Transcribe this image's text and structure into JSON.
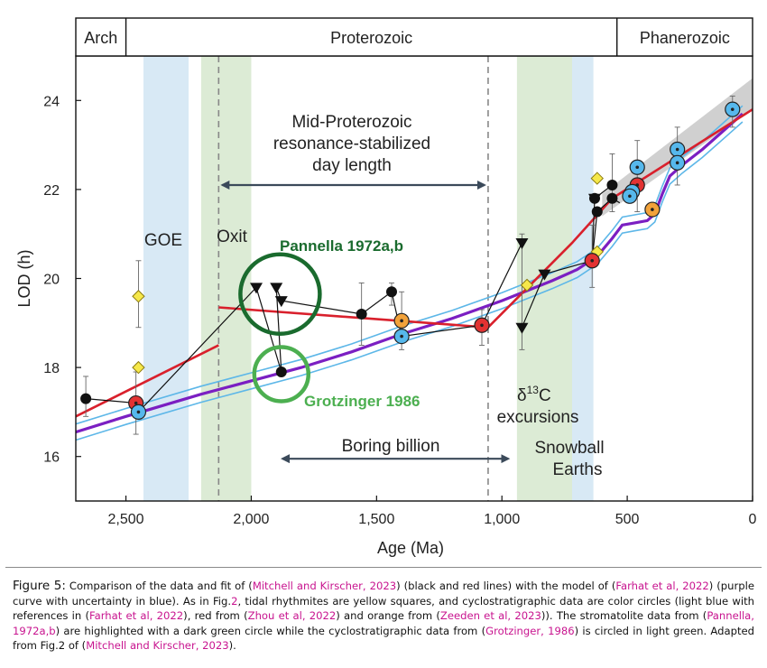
{
  "chart_data": {
    "type": "scatter",
    "xlabel": "Age (Ma)",
    "ylabel": "LOD (h)",
    "xlim": [
      2700,
      0
    ],
    "ylim": [
      15,
      25
    ],
    "xticks": [
      2500,
      2000,
      1500,
      1000,
      500,
      0
    ],
    "xtick_labels": [
      "2,500",
      "2,000",
      "1,500",
      "1,000",
      "500",
      "0"
    ],
    "yticks": [
      16,
      18,
      20,
      22,
      24
    ],
    "yticks_labels": [
      "16",
      "18",
      "20",
      "22",
      "24"
    ],
    "eras": [
      {
        "label": "Arch",
        "start": 2700,
        "end": 2500
      },
      {
        "label": "Proterozoic",
        "start": 2500,
        "end": 541
      },
      {
        "label": "Phanerozoic",
        "start": 541,
        "end": 0
      }
    ],
    "bands": [
      {
        "label": "GOE",
        "start": 2430,
        "end": 2250,
        "color": "#d8e9f5"
      },
      {
        "label": "Oxit",
        "start": 2200,
        "end": 2000,
        "color": "#dcebd5"
      },
      {
        "label": "δ13C excursions",
        "start": 940,
        "end": 720,
        "color": "#dcebd5"
      },
      {
        "label": "Snowball Earths",
        "start": 720,
        "end": 635,
        "color": "#d8e9f5"
      }
    ],
    "dashed_lines": [
      2130,
      1055
    ],
    "annotations": {
      "goe": "GOE",
      "oxit": "Oxit",
      "mid_proterozoic": [
        "Mid-Proterozoic",
        "resonance-stabilized",
        "day length"
      ],
      "boring_billion": "Boring billion",
      "delta_c_prefix": "δ",
      "delta_c_sup": "13",
      "delta_c_suffix": "C",
      "excursions": "excursions",
      "snowball_1": "Snowball",
      "snowball_2": "Earths",
      "pannella": "Pannella 1972a,b",
      "grotzinger": "Grotzinger 1986"
    },
    "arrows": [
      {
        "name": "mid-proterozoic-arrow",
        "x": [
          2130,
          1055
        ],
        "y": 22.1
      },
      {
        "name": "boring-billion-arrow",
        "x": [
          1890,
          960
        ],
        "y": 15.95
      }
    ],
    "circles": [
      {
        "name": "pannella-circle",
        "x": 1885,
        "y": 19.65,
        "color": "#1a6b2e"
      },
      {
        "name": "grotzinger-circle",
        "x": 1880,
        "y": 17.85,
        "color": "#4caf50"
      }
    ],
    "series": [
      {
        "name": "Mitchell and Kirscher 2023 (data)",
        "kind": "black-points",
        "points": [
          [
            2660,
            17.3
          ],
          [
            2460,
            17.2
          ],
          [
            1880,
            17.9
          ],
          [
            1560,
            19.2
          ],
          [
            1440,
            19.7
          ],
          [
            630,
            21.8
          ],
          [
            620,
            21.5
          ],
          [
            560,
            22.1
          ],
          [
            560,
            21.8
          ]
        ]
      },
      {
        "name": "stromatolite",
        "kind": "triangles",
        "points": [
          [
            1980,
            19.8
          ],
          [
            1900,
            19.8
          ],
          [
            1880,
            19.5
          ],
          [
            920,
            20.8
          ],
          [
            920,
            18.9
          ],
          [
            830,
            20.1
          ],
          [
            630,
            21.8
          ]
        ]
      },
      {
        "name": "tidal rhythmites",
        "kind": "yellow-squares",
        "points": [
          [
            2450,
            19.6
          ],
          [
            2450,
            18.0
          ],
          [
            900,
            19.85
          ],
          [
            620,
            22.25
          ],
          [
            620,
            20.6
          ],
          [
            300,
            22.85
          ]
        ]
      },
      {
        "name": "cyclostratigraphy (Farhat et al)",
        "kind": "lightblue-circles",
        "points": [
          [
            2450,
            17.0
          ],
          [
            1400,
            18.7
          ],
          [
            460,
            22.5
          ],
          [
            480,
            21.95
          ],
          [
            490,
            21.85
          ],
          [
            300,
            22.9
          ],
          [
            300,
            22.6
          ],
          [
            80,
            23.8
          ]
        ]
      },
      {
        "name": "cyclostratigraphy (Zhou et al)",
        "kind": "red-circles",
        "points": [
          [
            2460,
            17.2
          ],
          [
            1080,
            18.95
          ],
          [
            640,
            20.4
          ],
          [
            460,
            22.1
          ]
        ]
      },
      {
        "name": "cyclostratigraphy (Zeeden et al)",
        "kind": "orange-circles",
        "points": [
          [
            1400,
            19.05
          ],
          [
            400,
            21.55
          ]
        ]
      },
      {
        "name": "uncertainty",
        "kind": "error-bars",
        "bars": [
          [
            2660,
            16.9,
            17.8
          ],
          [
            2460,
            16.5,
            17.9
          ],
          [
            2450,
            18.9,
            20.4
          ],
          [
            1560,
            18.5,
            19.9
          ],
          [
            1440,
            19.4,
            19.9
          ],
          [
            1400,
            18.4,
            19.7
          ],
          [
            1080,
            18.5,
            19.3
          ],
          [
            920,
            18.4,
            21.0
          ],
          [
            640,
            19.8,
            21.2
          ],
          [
            560,
            21.5,
            22.8
          ],
          [
            460,
            21.5,
            23.1
          ],
          [
            300,
            22.1,
            23.4
          ],
          [
            80,
            23.4,
            24.1
          ]
        ]
      },
      {
        "name": "Mitchell connecting lines",
        "kind": "black-lines",
        "segments": [
          [
            [
              2660,
              17.3
            ],
            [
              2460,
              17.2
            ],
            [
              2450,
              17.0
            ],
            [
              1980,
              19.8
            ],
            [
              1880,
              17.9
            ],
            [
              1900,
              19.8
            ],
            [
              1880,
              19.5
            ],
            [
              1560,
              19.2
            ],
            [
              1440,
              19.7
            ],
            [
              1400,
              18.7
            ],
            [
              1080,
              18.95
            ],
            [
              920,
              20.8
            ]
          ],
          [
            [
              920,
              18.9
            ],
            [
              830,
              20.1
            ],
            [
              640,
              20.4
            ],
            [
              630,
              21.8
            ],
            [
              560,
              22.1
            ]
          ],
          [
            [
              640,
              20.4
            ],
            [
              620,
              21.5
            ],
            [
              560,
              21.8
            ],
            [
              530,
              21.7
            ]
          ]
        ]
      },
      {
        "name": "Mitchell and Kirscher 2023 (fit)",
        "kind": "red-line",
        "segments": [
          [
            [
              2700,
              16.9
            ],
            [
              2130,
              18.5
            ]
          ],
          [
            [
              2130,
              19.35
            ],
            [
              1055,
              18.9
            ]
          ],
          [
            [
              1055,
              18.9
            ],
            [
              720,
              20.8
            ],
            [
              560,
              21.8
            ],
            [
              0,
              23.8
            ]
          ]
        ]
      },
      {
        "name": "Farhat et al 2022 model",
        "kind": "purple-line",
        "points": [
          [
            2700,
            16.55
          ],
          [
            2500,
            16.9
          ],
          [
            2200,
            17.4
          ],
          [
            2000,
            17.7
          ],
          [
            1800,
            18.0
          ],
          [
            1600,
            18.35
          ],
          [
            1400,
            18.75
          ],
          [
            1200,
            19.1
          ],
          [
            1000,
            19.5
          ],
          [
            800,
            19.95
          ],
          [
            700,
            20.2
          ],
          [
            620,
            20.5
          ],
          [
            560,
            20.9
          ],
          [
            520,
            21.2
          ],
          [
            470,
            21.25
          ],
          [
            420,
            21.3
          ],
          [
            390,
            21.45
          ],
          [
            360,
            21.9
          ],
          [
            330,
            22.3
          ],
          [
            280,
            22.55
          ],
          [
            200,
            22.9
          ],
          [
            100,
            23.4
          ],
          [
            40,
            23.7
          ]
        ]
      },
      {
        "name": "uncertainty envelope",
        "kind": "blue-envelope",
        "offset": 0.18
      },
      {
        "name": "Phanerozoic band",
        "kind": "gray-band",
        "x": [
          600,
          0
        ],
        "upper": [
          21.9,
          24.5
        ],
        "lower": [
          21.4,
          23.8
        ]
      }
    ]
  },
  "caption": {
    "label": "Figure 5:",
    "t1": " Comparison of the data and fit of (",
    "r1": "Mitchell and Kirscher, 2023",
    "t2": ") (black and red lines) with the model of (",
    "r2": "Farhat et al, 2022",
    "t3": ") (purple curve with uncertainty in blue). As in Fig.",
    "r3": "2",
    "t4": ", tidal rhythmites are yellow squares, and cyclostratigraphic data are color circles (light blue with references in (",
    "r4": "Farhat et al, 2022",
    "t5": "), red from (",
    "r5": "Zhou et al, 2022",
    "t6": ") and orange from (",
    "r6": "Zeeden et al, 2023",
    "t7": ")). The stromatolite data from (",
    "r7": "Pannella, 1972a,b",
    "t8": ") are highlighted with a dark green circle while the cyclostratigraphic data from (",
    "r8": "Grotzinger, 1986",
    "t9": ") is circled in light green. Adapted from Fig.2 of (",
    "r9": "Mitchell and Kirscher, 2023",
    "t10": ")."
  }
}
